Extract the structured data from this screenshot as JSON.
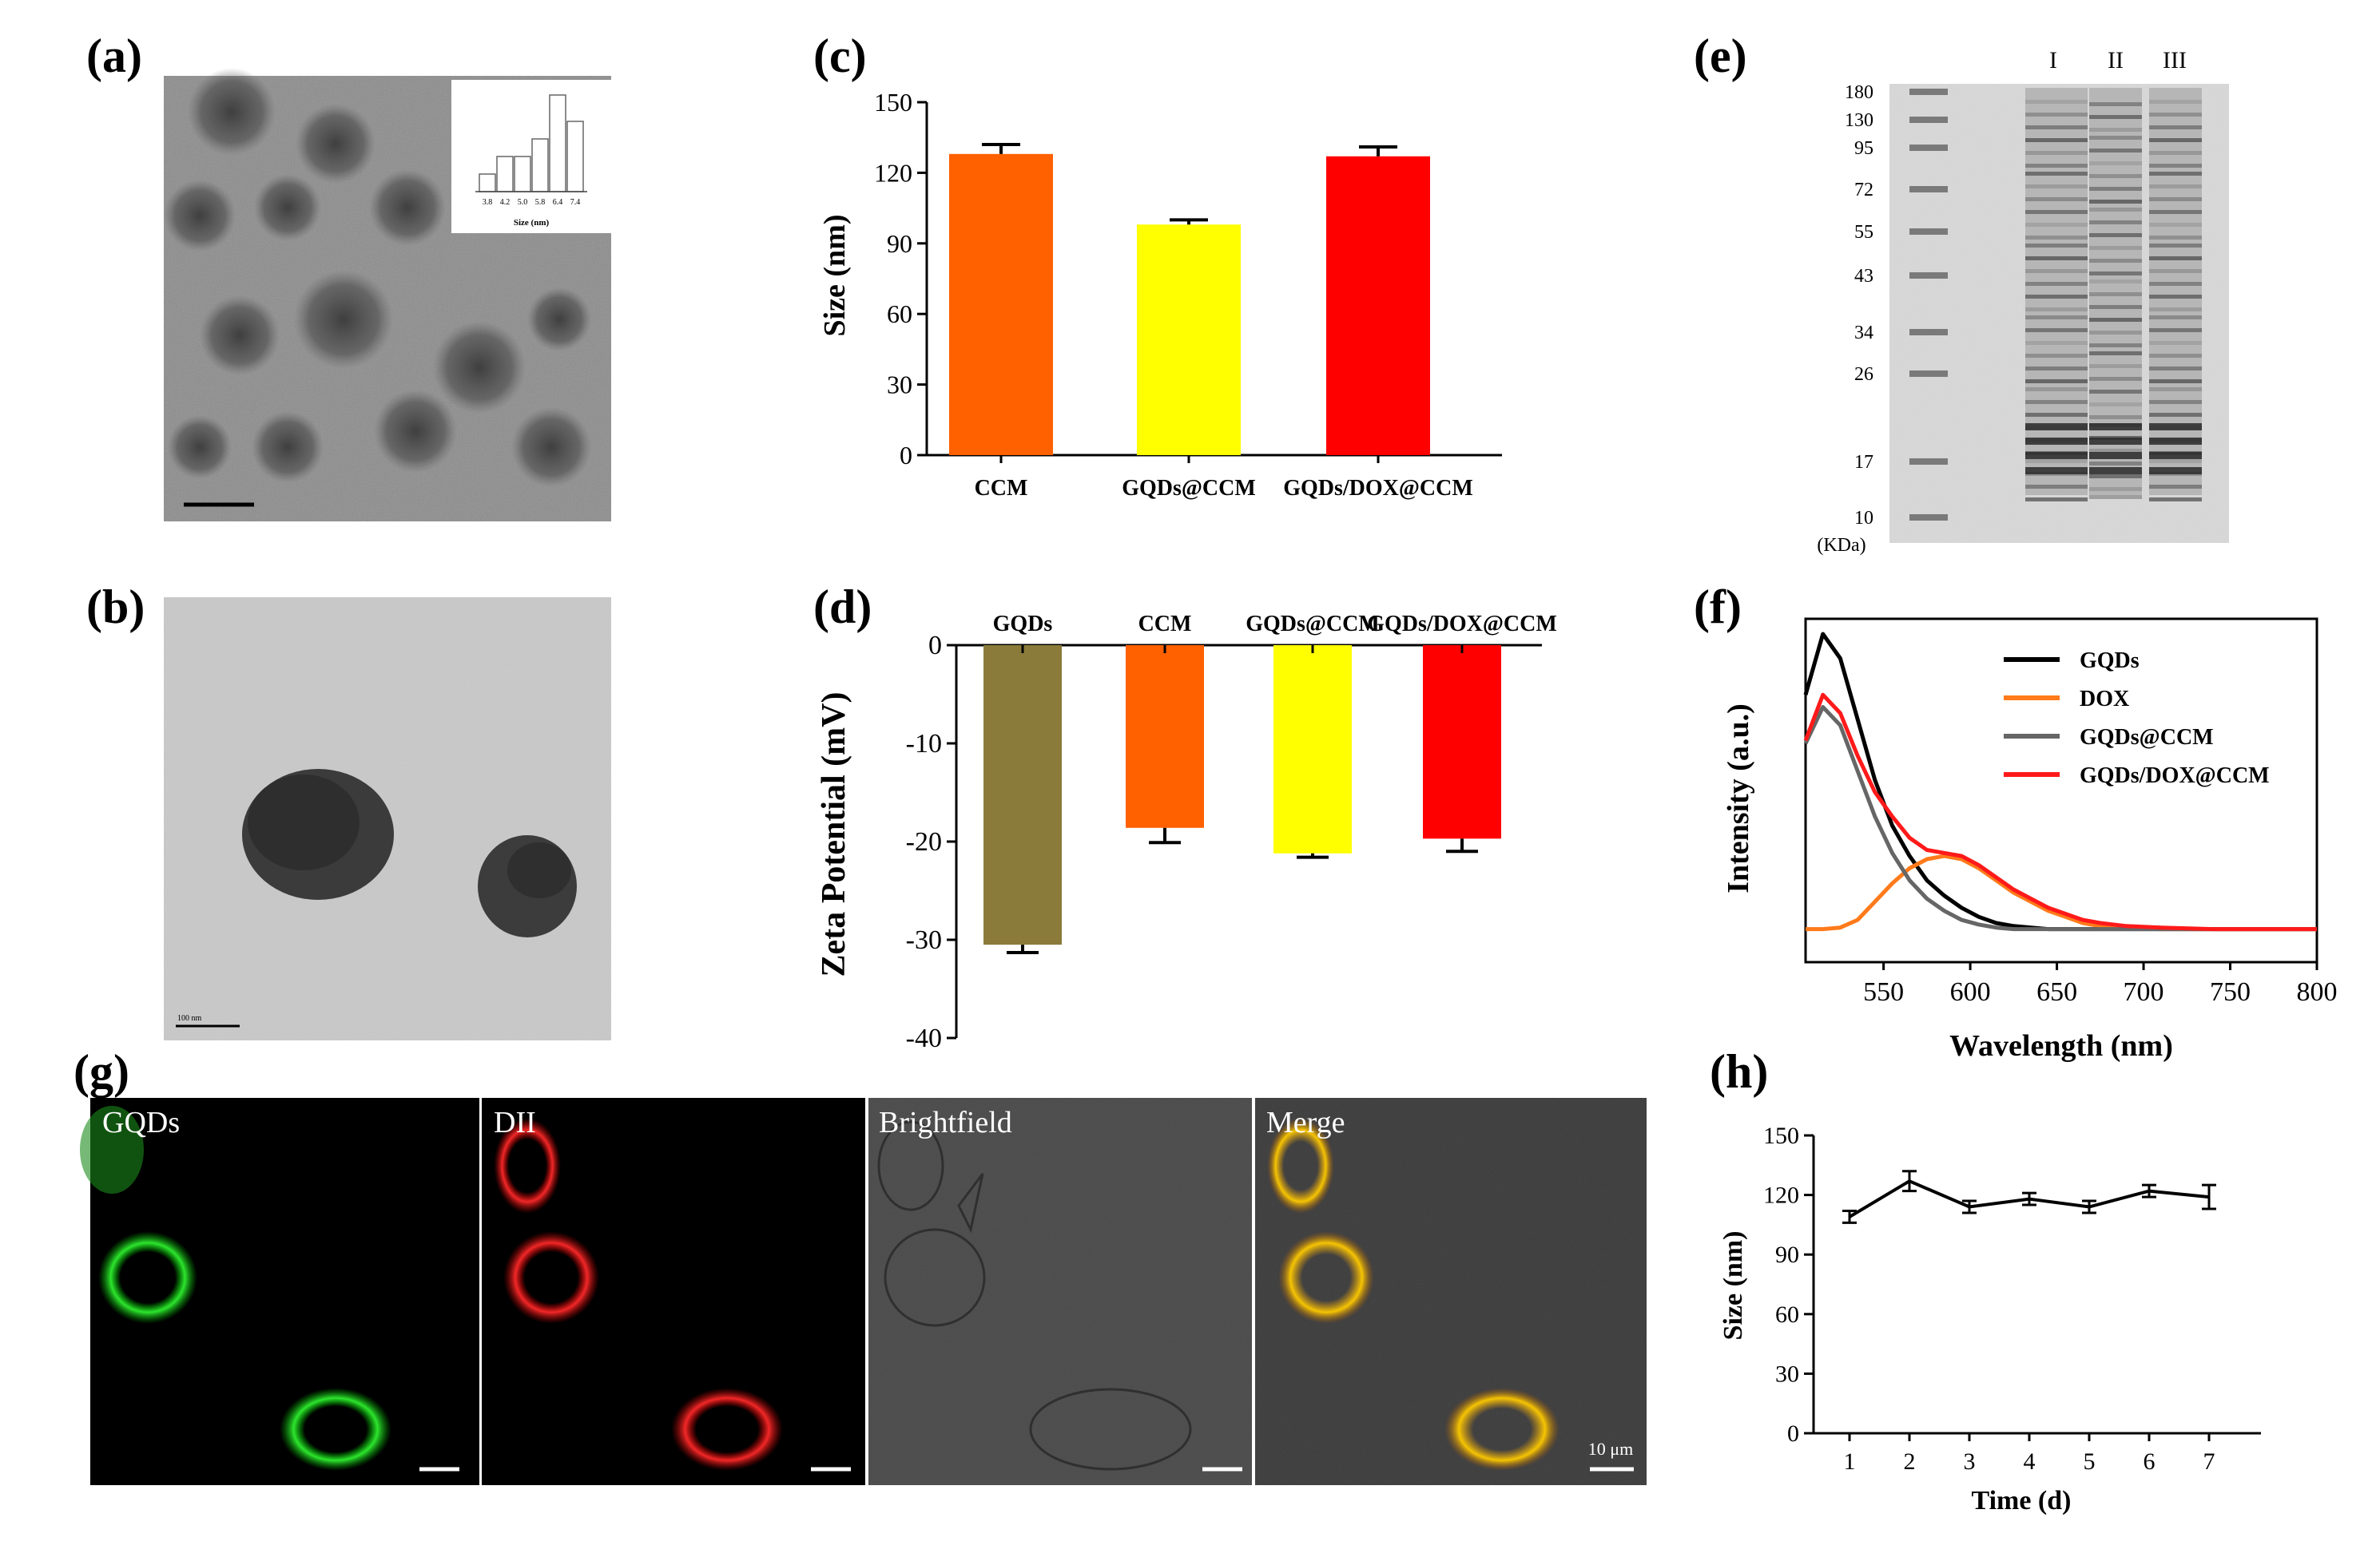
{
  "panels": {
    "a": {
      "label": "(a)",
      "scale_bar": "",
      "inset": {
        "xlabel": "Size (nm)",
        "categories": [
          "3.8",
          "4.2",
          "5.0",
          "5.8",
          "6.4",
          "7.4"
        ],
        "values": [
          2,
          4,
          4,
          6,
          11,
          8
        ]
      }
    },
    "b": {
      "label": "(b)",
      "scale_bar": "100 nm"
    },
    "c": {
      "label": "(c)"
    },
    "d": {
      "label": "(d)"
    },
    "e": {
      "label": "(e)",
      "lanes": [
        "I",
        "II",
        "III"
      ],
      "markers": [
        "180",
        "130",
        "95",
        "72",
        "55",
        "43",
        "34",
        "26",
        "17",
        "10"
      ],
      "unit": "(KDa)"
    },
    "f": {
      "label": "(f)"
    },
    "g": {
      "label": "(g)",
      "images": [
        "GQDs",
        "DII",
        "Brightfield",
        "Merge"
      ],
      "scale_bar": "10 μm"
    },
    "h": {
      "label": "(h)"
    }
  },
  "chart_data": [
    {
      "id": "c",
      "type": "bar",
      "categories": [
        "CCM",
        "GQDs@CCM",
        "GQDs/DOX@CCM"
      ],
      "values": [
        128,
        98,
        127
      ],
      "errors": [
        4,
        2,
        4
      ],
      "colors": [
        "#ff6000",
        "#ffff00",
        "#ff0000"
      ],
      "ylabel": "Size (nm)",
      "xlabel": "",
      "ylim": [
        0,
        150
      ],
      "yticks": [
        "0",
        "30",
        "60",
        "90",
        "120",
        "150"
      ]
    },
    {
      "id": "d",
      "type": "bar",
      "categories": [
        "GQDs",
        "CCM",
        "GQDs@CCM",
        "GQDs/DOX@CCM"
      ],
      "values": [
        -30.5,
        -18.6,
        -21.2,
        -19.7
      ],
      "errors": [
        0.8,
        1.5,
        0.4,
        1.3
      ],
      "colors": [
        "#8b7b3a",
        "#ff6000",
        "#ffff00",
        "#ff0000"
      ],
      "ylabel": "Zeta Potential (mV)",
      "ylim": [
        -40,
        0
      ],
      "yticks": [
        "0",
        "-10",
        "-20",
        "-30",
        "-40"
      ]
    },
    {
      "id": "f",
      "type": "line",
      "xlabel": "Wavelength (nm)",
      "ylabel": "Intensity (a.u.)",
      "xlim": [
        505,
        800
      ],
      "ylim": [
        0,
        1.05
      ],
      "xticks": [
        "550",
        "600",
        "650",
        "700",
        "750",
        "800"
      ],
      "x": [
        505,
        515,
        525,
        535,
        545,
        555,
        565,
        575,
        585,
        595,
        605,
        615,
        625,
        635,
        645,
        655,
        665,
        675,
        690,
        710,
        740,
        770,
        800
      ],
      "series": [
        {
          "name": "GQDs",
          "color": "#000000",
          "values": [
            0.8,
            1.0,
            0.92,
            0.72,
            0.52,
            0.37,
            0.27,
            0.19,
            0.14,
            0.1,
            0.07,
            0.05,
            0.04,
            0.035,
            0.03,
            0.03,
            0.03,
            0.03,
            0.03,
            0.03,
            0.03,
            0.03,
            0.03
          ]
        },
        {
          "name": "DOX",
          "color": "#ff7a1a",
          "values": [
            0.03,
            0.03,
            0.035,
            0.06,
            0.12,
            0.18,
            0.23,
            0.26,
            0.27,
            0.26,
            0.23,
            0.19,
            0.15,
            0.12,
            0.09,
            0.07,
            0.05,
            0.04,
            0.035,
            0.03,
            0.03,
            0.03,
            0.03
          ]
        },
        {
          "name": "GQDs@CCM",
          "color": "#666666",
          "values": [
            0.64,
            0.76,
            0.7,
            0.55,
            0.4,
            0.28,
            0.19,
            0.13,
            0.09,
            0.06,
            0.045,
            0.035,
            0.03,
            0.03,
            0.03,
            0.03,
            0.03,
            0.03,
            0.03,
            0.03,
            0.03,
            0.03,
            0.03
          ]
        },
        {
          "name": "GQDs/DOX@CCM",
          "color": "#ff1a1a",
          "values": [
            0.65,
            0.8,
            0.74,
            0.6,
            0.48,
            0.4,
            0.33,
            0.29,
            0.28,
            0.27,
            0.24,
            0.2,
            0.16,
            0.13,
            0.1,
            0.08,
            0.06,
            0.05,
            0.04,
            0.035,
            0.03,
            0.03,
            0.03
          ]
        }
      ]
    },
    {
      "id": "h",
      "type": "line",
      "xlabel": "Time (d)",
      "ylabel": "Size (nm)",
      "x": [
        1,
        2,
        3,
        4,
        5,
        6,
        7
      ],
      "values": [
        109,
        127,
        114,
        118,
        114,
        122,
        119
      ],
      "errors": [
        3,
        5,
        3,
        3,
        3,
        3,
        6
      ],
      "ylim": [
        0,
        150
      ],
      "yticks": [
        "0",
        "30",
        "60",
        "90",
        "120",
        "150"
      ],
      "xticks": [
        "1",
        "2",
        "3",
        "4",
        "5",
        "6",
        "7"
      ]
    }
  ]
}
